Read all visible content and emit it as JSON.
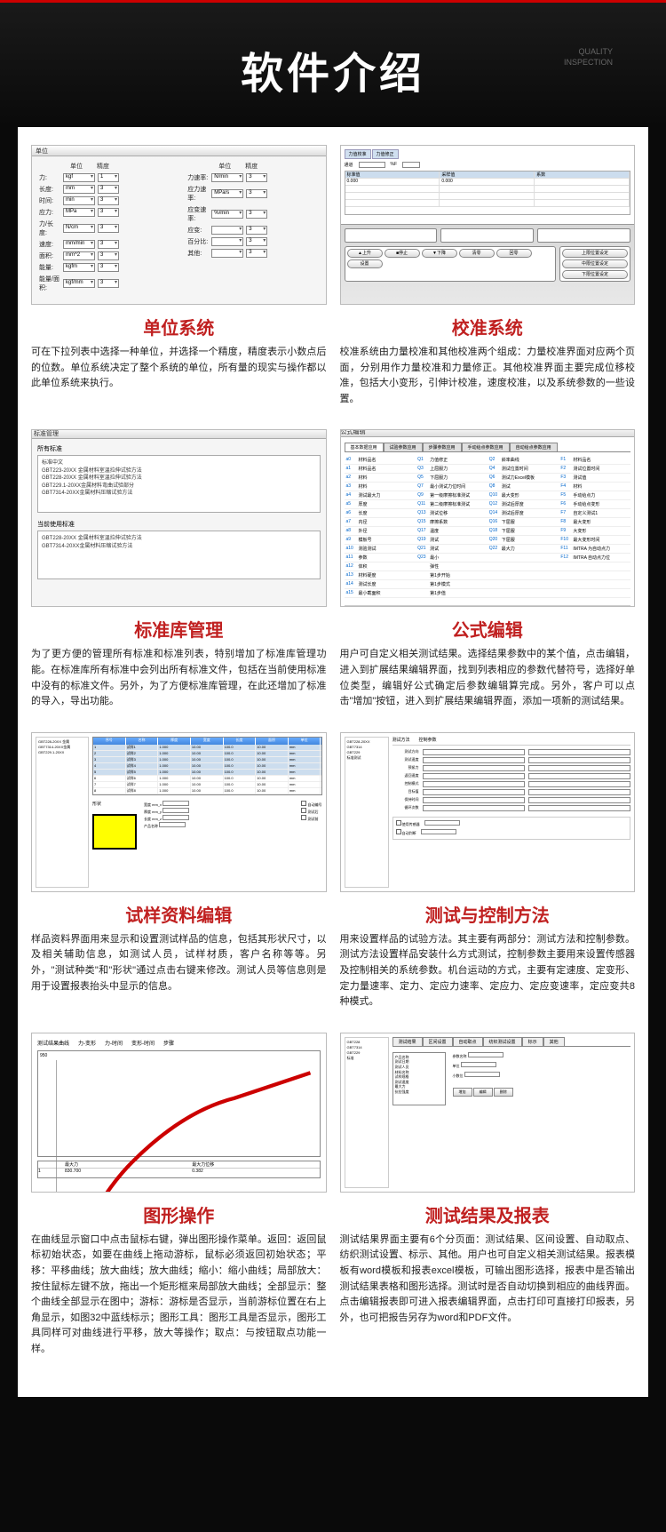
{
  "header": {
    "title": "软件介绍",
    "tag_line1": "QUALITY",
    "tag_line2": "INSPECTION"
  },
  "sections": [
    {
      "title": "单位系统",
      "desc": "可在下拉列表中选择一种单位，并选择一个精度，精度表示小数点后的位数。单位系统决定了整个系统的单位，所有量的现实与操作都以此单位系统来执行。"
    },
    {
      "title": "校准系统",
      "desc": "校准系统由力量校准和其他校准两个组成：力量校准界面对应两个页面，分别用作力量校准和力量修正。其他校准界面主要完成位移校准，包括大小变形，引伸计校准，速度校准，以及系统参数的一些设置。"
    },
    {
      "title": "标准库管理",
      "desc": "为了更方便的管理所有标准和标准列表，特别增加了标准库管理功能。在标准库所有标准中会列出所有标准文件，包括在当前使用标准中没有的标准文件。另外，为了方便标准库管理，在此还增加了标准的导入，导出功能。"
    },
    {
      "title": "公式编辑",
      "desc": "用户可自定义相关测试结果。选择结果参数中的某个值，点击编辑，进入到扩展结果编辑界面，找到列表相应的参数代替符号，选择好单位类型，编辑好公式确定后参数编辑算完成。另外，客户可以点击\"增加\"按钮，进入到扩展结果编辑界面，添加一项新的测试结果。"
    },
    {
      "title": "试样资料编辑",
      "desc": "样品资料界面用来显示和设置测试样品的信息，包括其形状尺寸，以及相关辅助信息，如测试人员，试样材质，客户名称等等。另外，\"测试种类\"和\"形状\"通过点击右键来修改。测试人员等信息则是用于设置报表抬头中显示的信息。"
    },
    {
      "title": "测试与控制方法",
      "desc": "用来设置样品的试验方法。其主要有两部分：测试方法和控制参数。测试方法设置样品安装什么方式测试，控制参数主要用来设置传感器及控制相关的系统参数。机台运动的方式，主要有定速度、定变形、定力量速率、定力、定应力速率、定应力、定应变速率，定应变共8种模式。"
    },
    {
      "title": "图形操作",
      "desc": "在曲线显示窗口中点击鼠标右键，弹出图形操作菜单。返回：返回鼠标初始状态，如要在曲线上拖动游标，鼠标必须返回初始状态；平移：平移曲线；放大曲线；放大曲线；缩小：缩小曲线；局部放大：按住鼠标左键不放，拖出一个矩形框来局部放大曲线；全部显示：整个曲线全部显示在图中；游标：游标是否显示，当前游标位置在右上角显示，如图32中蓝线标示；图形工具：图形工具是否显示，图形工具同样可对曲线进行平移，放大等操作；取点：与按钮取点功能一样。"
    },
    {
      "title": "测试结果及报表",
      "desc": "测试结果界面主要有6个分页面：测试结果、区间设置、自动取点、纺织测试设置、标示、其他。用户也可自定义相关测试结果。报表模板有word模板和报表excel模板，可输出图形选择，报表中是否输出测试结果表格和图形选择。测试时是否自动切换到相应的曲线界面。点击编辑报表即可进入报表编辑界面，点击打印可直接打印报表，另外，也可把报告另存为word和PDF文件。"
    }
  ],
  "unit_screen": {
    "titlebar": "单位",
    "headers": [
      "",
      "单位",
      "精度"
    ],
    "left_rows": [
      {
        "label": "力:",
        "unit": "kgf",
        "prec": "1"
      },
      {
        "label": "长度:",
        "unit": "mm",
        "prec": "3"
      },
      {
        "label": "时间:",
        "unit": "min",
        "prec": "3"
      },
      {
        "label": "应力:",
        "unit": "MPa",
        "prec": "3"
      },
      {
        "label": "力/长度:",
        "unit": "N/cm",
        "prec": "3"
      },
      {
        "label": "速度:",
        "unit": "mm/min",
        "prec": "3"
      },
      {
        "label": "面积:",
        "unit": "mm^2",
        "prec": "3"
      },
      {
        "label": "能量:",
        "unit": "kgfm",
        "prec": "3"
      },
      {
        "label": "能量/面积:",
        "unit": "kgf/mm",
        "prec": "3"
      }
    ],
    "right_rows": [
      {
        "label": "力速率:",
        "unit": "N/min",
        "prec": "3"
      },
      {
        "label": "应力速率:",
        "unit": "MPa/s",
        "prec": "3"
      },
      {
        "label": "应变速率:",
        "unit": "%/min",
        "prec": "3"
      },
      {
        "label": "应变:",
        "unit": "",
        "prec": "3"
      },
      {
        "label": "百分比:",
        "unit": "",
        "prec": "3"
      },
      {
        "label": "其他:",
        "unit": "",
        "prec": "3"
      }
    ],
    "btn_ok": "确定",
    "btn_cancel": "取消"
  },
  "std_screen": {
    "titlebar": "标准管理",
    "top_label": "所有标准",
    "items": [
      "标准中文",
      "GBT223-20XX 金属材料室温拉伸试验方法",
      "GBT228-20XX 金属材料室温拉伸试验方法",
      "GBT229.1-20XX金属材料弯曲试验部分",
      "GBT7314-20XX金属材料压缩试验方法"
    ],
    "bottom_label": "当前使用标准",
    "bottom_items": [
      "GBT228-20XX 金属材料室温拉伸试验方法",
      "GBT7314-20XX金属材料压缩试验方法"
    ]
  },
  "formula_screen": {
    "tabs": [
      "基本数据应用",
      "试验参数应用",
      "步骤参数应用",
      "手动给点参数应用",
      "自动给点参数应用"
    ],
    "params": [
      [
        "a0",
        "材料品名",
        "Q1",
        "力值修正",
        "Q2",
        "斜率曲线",
        "F1",
        "材料品名"
      ],
      [
        "a1",
        "材料品名",
        "Q3",
        "上屈服力",
        "Q4",
        "测试位置时间",
        "F2",
        "测试位置时间"
      ],
      [
        "a2",
        "材料",
        "Q5",
        "下屈服力",
        "Q6",
        "测试力Excel模板",
        "F3",
        "测试值"
      ],
      [
        "a3",
        "材料",
        "Q7",
        "最小测试力位时间",
        "Q8",
        "测试",
        "F4",
        "材料"
      ],
      [
        "a4",
        "测试最大力",
        "Q9",
        "第一级摩擦标准测试",
        "Q10",
        "最大变形",
        "F5",
        "手动给点力"
      ],
      [
        "a5",
        "厚度",
        "Q11",
        "第二级摩擦标准测试",
        "Q12",
        "测试后厚度",
        "F6",
        "手动给点变形"
      ],
      [
        "a6",
        "长度",
        "Q13",
        "测试位移",
        "Q14",
        "测试后厚度",
        "F7",
        "自定义测试1"
      ],
      [
        "a7",
        "内径",
        "Q15",
        "摩擦系数",
        "Q16",
        "下屈服",
        "F8",
        "最大变形"
      ],
      [
        "a8",
        "外径",
        "Q17",
        "温度",
        "Q18",
        "下屈服",
        "F9",
        "大变形"
      ],
      [
        "a9",
        "模板号",
        "Q19",
        "测试",
        "Q20",
        "下屈服",
        "F10",
        "最大变形时间"
      ],
      [
        "a10",
        "测验测试",
        "Q21",
        "测试",
        "Q22",
        "最大力",
        "F11",
        "IMTRA 为自动点力"
      ],
      [
        "a11",
        "参数",
        "Q23",
        "最小",
        "",
        "",
        "F12",
        "IMTRA 自动点力位"
      ],
      [
        "a12",
        "体积",
        "",
        "弹性",
        "",
        "",
        "",
        ""
      ],
      [
        "a13",
        "材料硬度",
        "",
        "第1步开始",
        "",
        "",
        "",
        ""
      ],
      [
        "a14",
        "测试长度",
        "",
        "第1步模式",
        "",
        "",
        "",
        ""
      ],
      [
        "a15",
        "最小截面积",
        "",
        "第1步值",
        "",
        "",
        "",
        ""
      ]
    ],
    "bottom_labels": [
      "名称",
      "单位类型",
      "公式"
    ],
    "unit_type": "力-N级",
    "btn_ok": "确定",
    "btn_cancel": "取消",
    "hint": "Basic operators are + - * / \\ ^ ( )"
  },
  "sample_screen": {
    "headers": [
      "序号",
      "名称",
      "厚度",
      "宽度",
      "长度",
      "面积",
      "单位"
    ],
    "shape_label": "形状"
  },
  "graph_screen": {
    "tabs": [
      "测试结果曲线",
      "力-变形",
      "力-时间",
      "变形-时间",
      "步骤"
    ],
    "y_max": "950",
    "table_cols": [
      "最大力",
      "最大力位移"
    ],
    "table_vals": [
      "830.700",
      "0.382"
    ]
  },
  "report_screen": {
    "tabs": [
      "测试结果",
      "区间设置",
      "自动取点",
      "纺织测试设置",
      "标示",
      "其他"
    ],
    "list_items": [
      "产品名称",
      "测试日期",
      "测试人员",
      "材料名称",
      "试样规格",
      "测试速度",
      "最大力",
      "抗拉强度"
    ]
  },
  "colors": {
    "title_red": "#c02020",
    "accent_blue": "#4488dd",
    "header_red": "#cc0000"
  }
}
